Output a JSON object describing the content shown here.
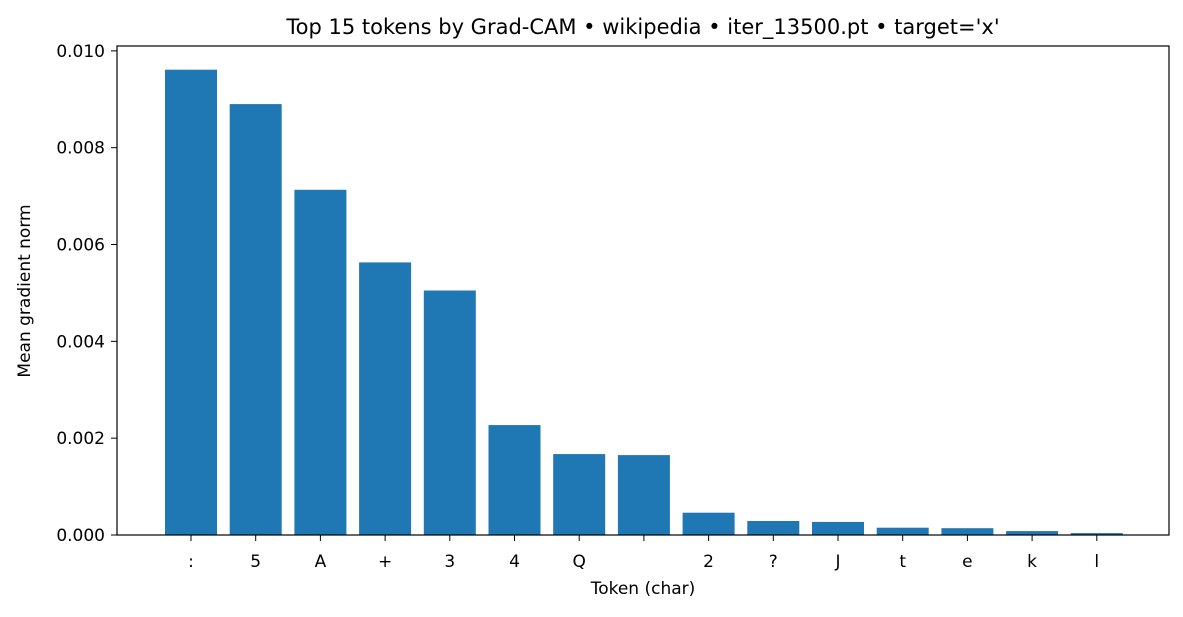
{
  "chart_data": {
    "type": "bar",
    "title": "Top 15 tokens by Grad-CAM • wikipedia • iter_13500.pt • target='x'",
    "xlabel": "Token (char)",
    "ylabel": "Mean gradient norm",
    "categories": [
      ":",
      "5",
      "A",
      "+",
      "3",
      "4",
      "Q",
      " ",
      "2",
      "?",
      "J",
      "t",
      "e",
      "k",
      "l"
    ],
    "values": [
      0.00961,
      0.0089,
      0.00713,
      0.00563,
      0.00505,
      0.00227,
      0.00167,
      0.00165,
      0.00046,
      0.00029,
      0.00027,
      0.00015,
      0.00014,
      8e-05,
      4e-05
    ],
    "ylim": [
      0,
      0.0101
    ],
    "yticks": [
      "0.000",
      "0.002",
      "0.004",
      "0.006",
      "0.008",
      "0.010"
    ],
    "bar_color": "#1f77b4",
    "grid": false
  }
}
